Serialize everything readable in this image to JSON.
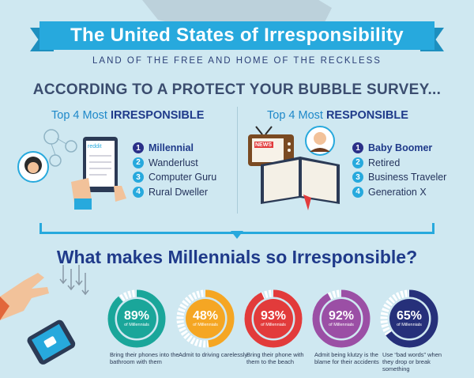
{
  "title": "The United States of Irresponsibility",
  "subtitle": "LAND OF THE FREE AND HOME OF THE RECKLESS",
  "survey_heading": "ACCORDING TO A PROTECT YOUR BUBBLE SURVEY...",
  "irresponsible": {
    "title_prefix": "Top 4 Most ",
    "title_emph": "IRRESPONSIBLE",
    "device_label": "reddit",
    "items": [
      {
        "n": "1",
        "label": "Millennial"
      },
      {
        "n": "2",
        "label": "Wanderlust"
      },
      {
        "n": "3",
        "label": "Computer Guru"
      },
      {
        "n": "4",
        "label": "Rural Dweller"
      }
    ]
  },
  "responsible": {
    "title_prefix": "Top 4 Most ",
    "title_emph": "RESPONSIBLE",
    "tv_label": "NEWS",
    "items": [
      {
        "n": "1",
        "label": "Baby Boomer"
      },
      {
        "n": "2",
        "label": "Retired"
      },
      {
        "n": "3",
        "label": "Business Traveler"
      },
      {
        "n": "4",
        "label": "Generation X"
      }
    ]
  },
  "question": "What makes Millennials so Irresponsible?",
  "stats": [
    {
      "pct": "89%",
      "value": 89,
      "sub": "of Millennials",
      "color": "#1aa69a",
      "caption": "Bring their phones into the bathroom with them"
    },
    {
      "pct": "48%",
      "value": 48,
      "sub": "of Millennials",
      "color": "#f5a623",
      "caption": "Admit to driving carelessly"
    },
    {
      "pct": "93%",
      "value": 93,
      "sub": "of Millennials",
      "color": "#e23b3b",
      "caption": "Bring their phone with them to the beach"
    },
    {
      "pct": "92%",
      "value": 92,
      "sub": "of Millennials",
      "color": "#9b4fa5",
      "caption": "Admit being klutzy is the blame for their accidents"
    },
    {
      "pct": "65%",
      "value": 65,
      "sub": "of Millennials",
      "color": "#26307a",
      "caption": "Use “bad words” when they drop or break something"
    }
  ],
  "colors": {
    "accent": "#27a9dd",
    "navy": "#1f3a8a",
    "background": "#cfe8f1"
  }
}
